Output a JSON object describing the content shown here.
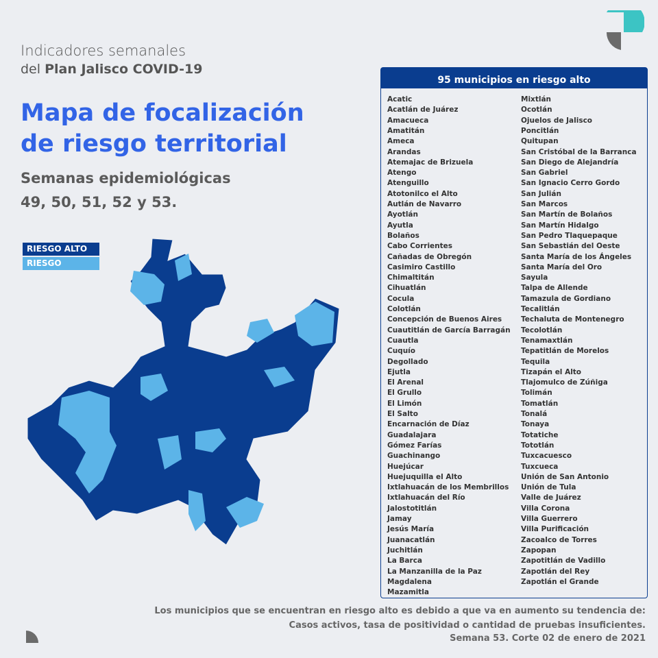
{
  "header": {
    "line1": "Indicadores semanales",
    "line2_prefix": "del",
    "line2_bold": "Plan Jalisco COVID-19"
  },
  "title": [
    "Mapa de focalización",
    "de riesgo territorial"
  ],
  "subtitle": [
    "Semanas epidemiológicas",
    "49, 50, 51, 52 y 53."
  ],
  "legend": [
    "RIESGO ALTO",
    "RIESGO"
  ],
  "panel": {
    "title": "95 municipios en riesgo alto",
    "columns": [
      [
        "Acatic",
        "Acatlán de Juárez",
        "Amacueca",
        "Amatitán",
        "Ameca",
        "Arandas",
        "Atemajac de Brizuela",
        "Atengo",
        "Atenguillo",
        "Atotonilco el Alto",
        "Autlán de Navarro",
        "Ayotlán",
        "Ayutla",
        "Bolaños",
        "Cabo Corrientes",
        "Cañadas de Obregón",
        "Casimiro Castillo",
        "Chimaltitán",
        "Cihuatlán",
        "Cocula",
        "Colotlán",
        "Concepción de Buenos Aires",
        "Cuautitlán de García Barragán",
        "Cuautla",
        "Cuquío",
        "Degollado",
        "Ejutla",
        "El Arenal",
        "El Grullo",
        "El Limón",
        "El Salto",
        "Encarnación de Díaz",
        "Guadalajara",
        "Gómez Farías",
        "Guachinango",
        "Huejúcar",
        "Huejuquilla el Alto",
        "Ixtlahuacán de los Membrillos",
        "Ixtlahuacán del Río",
        "Jalostotitlán",
        "Jamay",
        "Jesús María",
        "Juanacatlán",
        "Juchitlán",
        "La Barca",
        "La Manzanilla de la Paz",
        "Magdalena",
        "Mazamitla"
      ],
      [
        "Mixtlán",
        "Ocotlán",
        "Ojuelos de Jalisco",
        "Poncitlán",
        "Quitupan",
        "San Cristóbal de la Barranca",
        "San Diego de Alejandría",
        "San Gabriel",
        "San Ignacio Cerro Gordo",
        "San Julián",
        "San Marcos",
        "San Martín de Bolaños",
        "San Martín Hidalgo",
        "San Pedro Tlaquepaque",
        "San Sebastián del Oeste",
        "Santa María de los Ángeles",
        "Santa María del Oro",
        "Sayula",
        "Talpa de Allende",
        "Tamazula de Gordiano",
        "Tecalitlán",
        "Techaluta de Montenegro",
        "Tecolotlán",
        "Tenamaxtlán",
        "Tepatitlán de Morelos",
        "Tequila",
        "Tizapán el Alto",
        "Tlajomulco de Zúñiga",
        "Tolimán",
        "Tomatlán",
        "Tonalá",
        "Tonaya",
        "Totatiche",
        "Tototlán",
        "Tuxcacuesco",
        "Tuxcueca",
        "Unión de San Antonio",
        "Unión de Tula",
        "Valle de Juárez",
        "Villa Corona",
        "Villa Guerrero",
        "Villa Purificación",
        "Zacoalco de Torres",
        "Zapopan",
        "Zapotitlán de Vadillo",
        "Zapotlán del Rey",
        "Zapotlán el Grande"
      ]
    ]
  },
  "footer": [
    "Los municipios que se encuentran en riesgo alto es debido a que va en aumento su tendencia de:",
    "Casos activos, tasa de positividad o cantidad de pruebas insuficientes.",
    "Semana 53. Corte 02 de enero de 2021"
  ]
}
